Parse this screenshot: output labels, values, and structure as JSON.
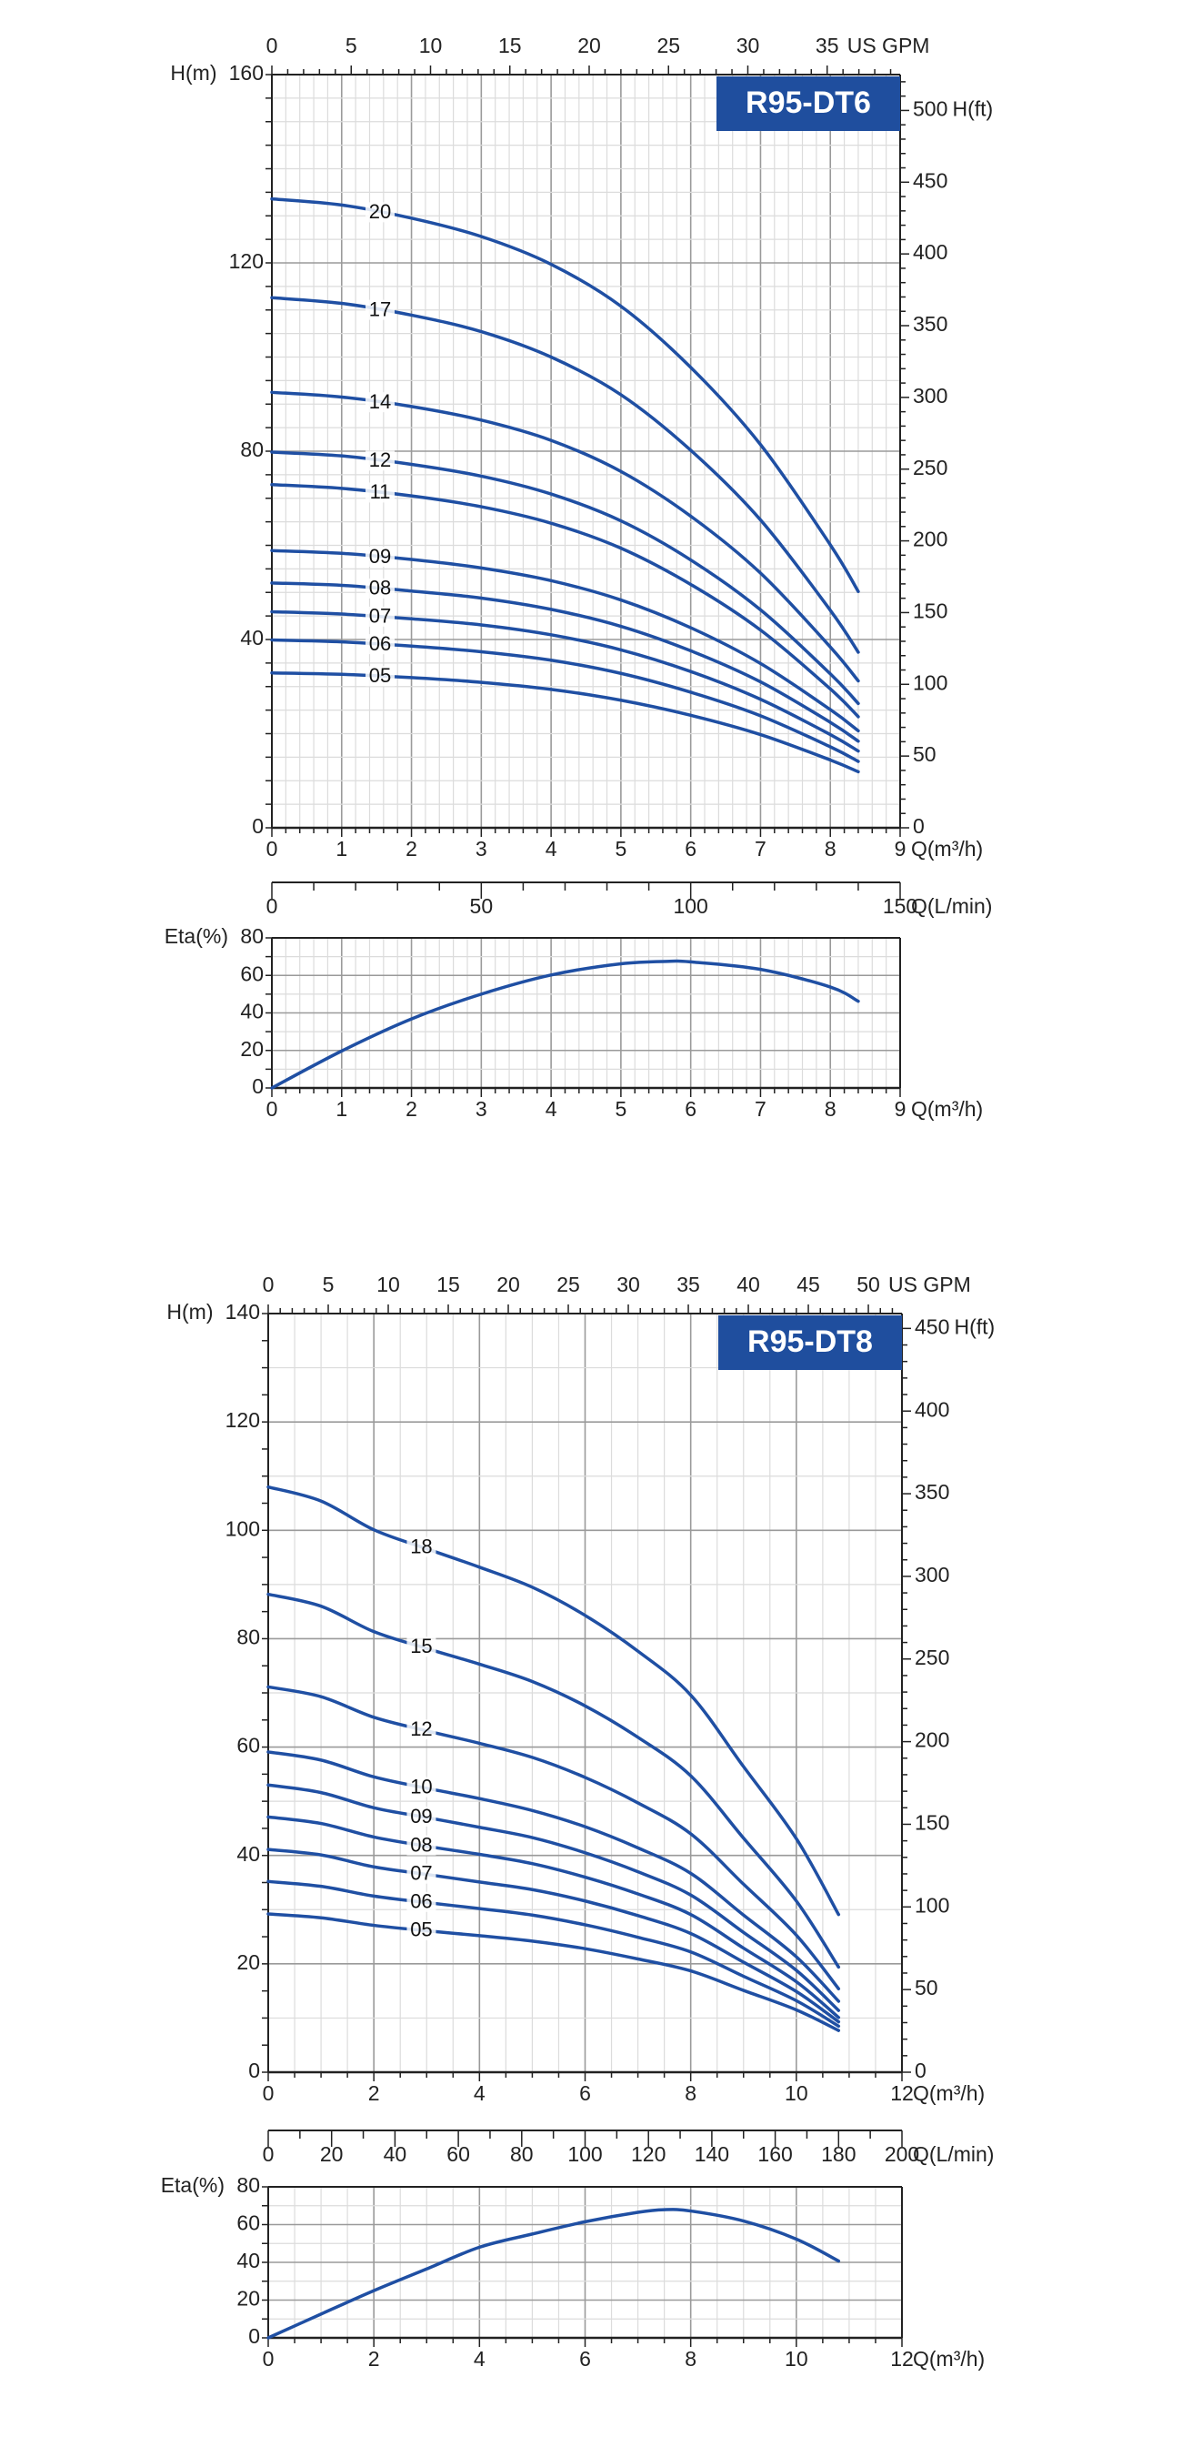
{
  "colors": {
    "curve": "#1f4fa3",
    "title_box": "#1f4e9e",
    "grid_major": "#9a9a9a",
    "grid_minor": "#dcdcdc",
    "axis": "#222222"
  },
  "chart_data": [
    {
      "type": "line",
      "title": "R95-DT6",
      "xlabel": "Q(m³/h)",
      "xlim": [
        0,
        9
      ],
      "xticks": [
        "0",
        "1",
        "2",
        "3",
        "4",
        "5",
        "6",
        "7",
        "8",
        "9"
      ],
      "ylabel": "H(m)",
      "ylim": [
        0,
        160
      ],
      "yticks": [
        "0",
        "40",
        "80",
        "120",
        "160"
      ],
      "y2label": "H(ft)",
      "y2lim": [
        0,
        525
      ],
      "y2ticks": [
        "0",
        "50",
        "100",
        "150",
        "200",
        "250",
        "300",
        "350",
        "400",
        "450",
        "500"
      ],
      "x2label": "US GPM",
      "x2lim": [
        0,
        39.6
      ],
      "x2ticks": [
        "0",
        "5",
        "10",
        "15",
        "20",
        "25",
        "30",
        "35"
      ],
      "grid": true,
      "x": [
        0,
        1,
        2,
        3,
        4,
        5,
        6,
        7,
        8,
        8.4
      ],
      "series": [
        {
          "name": "20",
          "values": [
            133.6,
            132.3,
            129.5,
            125.6,
            119.7,
            110.8,
            97.8,
            81.4,
            60.1,
            50.2
          ]
        },
        {
          "name": "17",
          "values": [
            112.6,
            111.4,
            108.9,
            105.4,
            100.0,
            92.0,
            80.2,
            65.4,
            46.2,
            37.3
          ]
        },
        {
          "name": "14",
          "values": [
            92.5,
            91.5,
            89.5,
            86.6,
            82.3,
            75.7,
            66.2,
            54.1,
            38.4,
            31.2
          ]
        },
        {
          "name": "12",
          "values": [
            79.8,
            79.0,
            77.2,
            74.7,
            70.9,
            65.2,
            56.9,
            46.3,
            32.7,
            26.4
          ]
        },
        {
          "name": "11",
          "values": [
            72.9,
            72.1,
            70.5,
            68.2,
            64.7,
            59.4,
            51.7,
            42.0,
            29.5,
            23.6
          ]
        },
        {
          "name": "09",
          "values": [
            58.9,
            58.3,
            57.0,
            55.2,
            52.5,
            48.4,
            42.5,
            34.9,
            25.1,
            20.6
          ]
        },
        {
          "name": "08",
          "values": [
            52.0,
            51.5,
            50.3,
            48.8,
            46.4,
            42.8,
            37.6,
            31.0,
            22.4,
            18.4
          ]
        },
        {
          "name": "07",
          "values": [
            45.9,
            45.4,
            44.4,
            43.1,
            41.0,
            37.8,
            33.2,
            27.3,
            19.8,
            16.3
          ]
        },
        {
          "name": "06",
          "values": [
            39.9,
            39.5,
            38.6,
            37.4,
            35.6,
            32.8,
            28.8,
            23.8,
            17.2,
            14.1
          ]
        },
        {
          "name": "05",
          "values": [
            32.9,
            32.6,
            31.9,
            30.9,
            29.4,
            27.1,
            23.9,
            19.8,
            14.4,
            11.9
          ]
        }
      ]
    },
    {
      "type": "line",
      "xlabel": "Q(m³/h)",
      "xlim": [
        0,
        9
      ],
      "xticks": [
        "0",
        "1",
        "2",
        "3",
        "4",
        "5",
        "6",
        "7",
        "8",
        "9"
      ],
      "ylabel": "Eta(%)",
      "ylim": [
        0,
        80
      ],
      "yticks": [
        "0",
        "20",
        "40",
        "60",
        "80"
      ],
      "x3label": "Q(L/min)",
      "x3lim": [
        0,
        150
      ],
      "x3ticks": [
        "0",
        "50",
        "100",
        "150"
      ],
      "grid": true,
      "x": [
        0,
        1,
        2,
        3,
        4,
        5,
        5.7,
        6,
        7,
        8,
        8.4
      ],
      "series": [
        {
          "values": [
            0,
            19.7,
            36.8,
            50,
            60.2,
            66.2,
            67.5,
            67.2,
            63.2,
            53.8,
            46.2
          ]
        }
      ]
    },
    {
      "type": "line",
      "title": "R95-DT8",
      "xlabel": "Q(m³/h)",
      "xlim": [
        0,
        12
      ],
      "xticks": [
        "0",
        "2",
        "4",
        "6",
        "8",
        "10",
        "12"
      ],
      "ylabel": "H(m)",
      "ylim": [
        0,
        140
      ],
      "yticks": [
        "0",
        "20",
        "40",
        "60",
        "80",
        "100",
        "120",
        "140"
      ],
      "y2label": "H(ft)",
      "y2lim": [
        0,
        459
      ],
      "y2ticks": [
        "0",
        "50",
        "100",
        "150",
        "200",
        "250",
        "300",
        "350",
        "400",
        "450"
      ],
      "x2label": "US GPM",
      "x2lim": [
        0,
        52.8
      ],
      "x2ticks": [
        "0",
        "5",
        "10",
        "15",
        "20",
        "25",
        "30",
        "35",
        "40",
        "45",
        "50"
      ],
      "grid": true,
      "x": [
        0,
        1,
        2,
        3,
        4,
        5,
        6,
        7,
        8,
        9,
        10,
        10.8
      ],
      "series": [
        {
          "name": "18",
          "values": [
            108.0,
            105.4,
            100.1,
            96.6,
            93.2,
            89.5,
            84.3,
            77.7,
            69.6,
            56.4,
            43.1,
            29.1
          ]
        },
        {
          "name": "15",
          "values": [
            88.2,
            86.0,
            81.3,
            78.2,
            75.3,
            72.1,
            67.6,
            61.8,
            54.7,
            43.2,
            31.6,
            19.4
          ]
        },
        {
          "name": "12",
          "values": [
            71.1,
            69.3,
            65.5,
            63.0,
            60.7,
            58.1,
            54.4,
            49.7,
            44.0,
            34.7,
            25.3,
            15.4
          ]
        },
        {
          "name": "10",
          "values": [
            59.1,
            57.6,
            54.5,
            52.4,
            50.5,
            48.3,
            45.3,
            41.4,
            36.7,
            29.0,
            21.3,
            13.1
          ]
        },
        {
          "name": "09",
          "values": [
            53.0,
            51.6,
            48.8,
            47.0,
            45.2,
            43.3,
            40.5,
            37.0,
            32.7,
            25.8,
            18.8,
            11.4
          ]
        },
        {
          "name": "08",
          "values": [
            47.1,
            45.9,
            43.4,
            41.7,
            40.2,
            38.5,
            36.0,
            32.9,
            29.1,
            22.9,
            16.7,
            10.1
          ]
        },
        {
          "name": "07",
          "values": [
            41.1,
            40.1,
            37.9,
            36.5,
            35.1,
            33.7,
            31.6,
            28.9,
            25.6,
            20.3,
            14.9,
            9.3
          ]
        },
        {
          "name": "06",
          "values": [
            35.2,
            34.3,
            32.5,
            31.3,
            30.2,
            29.0,
            27.2,
            24.9,
            22.2,
            17.7,
            13.2,
            8.5
          ]
        },
        {
          "name": "05",
          "values": [
            29.2,
            28.5,
            27.1,
            26.1,
            25.2,
            24.2,
            22.8,
            20.9,
            18.7,
            15.1,
            11.5,
            7.7
          ]
        }
      ]
    },
    {
      "type": "line",
      "xlabel": "Q(m³/h)",
      "xlim": [
        0,
        12
      ],
      "xticks": [
        "0",
        "2",
        "4",
        "6",
        "8",
        "10",
        "12"
      ],
      "ylabel": "Eta(%)",
      "ylim": [
        0,
        80
      ],
      "yticks": [
        "0",
        "20",
        "40",
        "60",
        "80"
      ],
      "x3label": "Q(L/min)",
      "x3lim": [
        0,
        200
      ],
      "x3ticks": [
        "0",
        "20",
        "40",
        "60",
        "80",
        "100",
        "120",
        "140",
        "160",
        "180",
        "200"
      ],
      "grid": true,
      "x": [
        0,
        1,
        2,
        3,
        4,
        5,
        6,
        7,
        7.5,
        8,
        9,
        10,
        10.8
      ],
      "series": [
        {
          "values": [
            0,
            12.6,
            25,
            36.5,
            48,
            55,
            61.5,
            66.5,
            67.9,
            67.2,
            61.9,
            52.3,
            40.7
          ]
        }
      ]
    }
  ]
}
